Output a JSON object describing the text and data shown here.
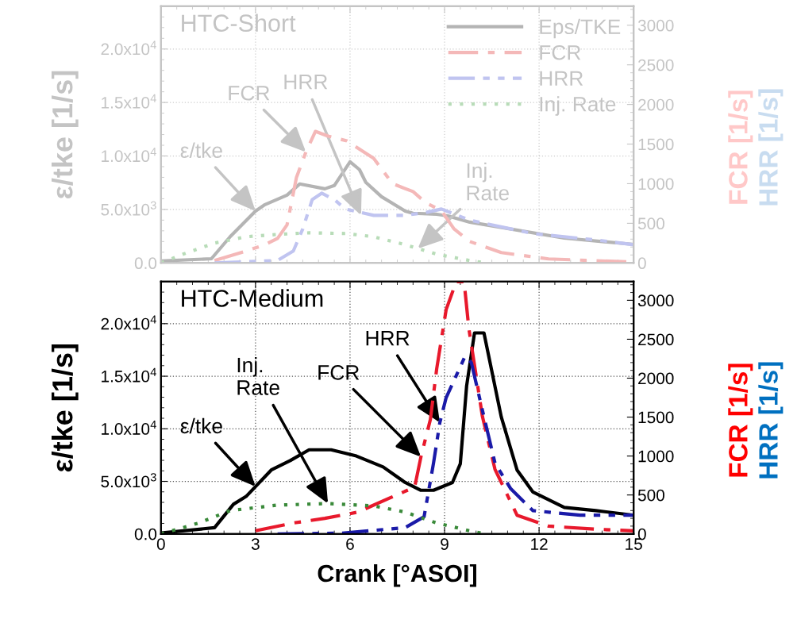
{
  "chart_data": [
    {
      "type": "line",
      "title": "HTC-Short",
      "ylabel": "ε/tke [1/s]",
      "y2label": "FCR [1/s]",
      "y3label": "HRR [1/s]",
      "xlim": [
        0,
        15
      ],
      "xticks": [
        0,
        3,
        6,
        9,
        12,
        15
      ],
      "ylim": [
        0,
        24000
      ],
      "yticks": [
        {
          "value": 0,
          "label": "0.0"
        },
        {
          "value": 5000,
          "label": "5.0x10$^{3}$"
        },
        {
          "value": 10000,
          "label": "1.0x10$^{4}$"
        },
        {
          "value": 15000,
          "label": "1.5x10$^{4}$"
        },
        {
          "value": 20000,
          "label": "2.0x10$^{4}$"
        }
      ],
      "y2lim": [
        0,
        3240
      ],
      "y2ticks": [
        0,
        500,
        1000,
        1500,
        2000,
        2500,
        3000
      ],
      "grid": true,
      "legend": "top right",
      "tick_labels": "y",
      "series": [
        {
          "name": "Eps/TKE",
          "color": "#b4b4b4",
          "line_style": "solid",
          "x": [
            0,
            1.6,
            2.2,
            3.0,
            3.3,
            4.0,
            4.4,
            5.2,
            5.5,
            6.0,
            6.3,
            6.5,
            7.0,
            7.75,
            8.0,
            8.75,
            9.1,
            9.8,
            12.8,
            15
          ],
          "values": [
            180,
            390,
            2470,
            4850,
            5450,
            6340,
            7380,
            6930,
            7230,
            9460,
            8720,
            7530,
            6190,
            4850,
            4640,
            4550,
            4400,
            3810,
            2320,
            1730
          ]
        },
        {
          "name": "FCR",
          "color": "#f4b8b8",
          "line_style": "dashdot",
          "axis": "y2",
          "x": [
            1.7,
            2.7,
            3.3,
            3.7,
            4.0,
            4.3,
            4.6,
            4.9,
            5.3,
            5.9,
            6.75,
            7.35,
            8.0,
            8.4,
            8.9,
            9.3,
            9.8,
            10.8,
            12.3,
            15
          ],
          "values": [
            30,
            150,
            230,
            310,
            480,
            1080,
            1400,
            1660,
            1600,
            1540,
            1320,
            1000,
            900,
            760,
            660,
            430,
            270,
            130,
            50,
            10
          ]
        },
        {
          "name": "HRR",
          "color": "#c0c4f0",
          "line_style": "dashdotdot",
          "axis": "y2",
          "x": [
            1.7,
            3.7,
            4.2,
            4.5,
            4.8,
            5.1,
            5.5,
            5.85,
            6.75,
            7.75,
            8.45,
            8.9,
            9.8,
            11.8,
            13.8,
            15
          ],
          "values": [
            0,
            30,
            150,
            430,
            800,
            880,
            800,
            680,
            600,
            600,
            640,
            680,
            540,
            370,
            290,
            230
          ]
        },
        {
          "name": "Inj. Rate",
          "color": "#b8dcb8",
          "line_style": "dotted",
          "axis": "y2",
          "x": [
            0,
            0.7,
            1.7,
            2.7,
            3.7,
            4.7,
            5.9,
            6.75,
            7.75,
            8.75,
            9.8,
            10.3
          ],
          "values": [
            0,
            110,
            250,
            330,
            360,
            380,
            370,
            330,
            230,
            110,
            30,
            0
          ]
        }
      ],
      "annotations": [
        {
          "text": "ε/tke",
          "x": 3.0,
          "y": 4850
        },
        {
          "text": "FCR",
          "x": 4.6,
          "y": 10370
        },
        {
          "text": "HRR",
          "x": 6.35,
          "y": 4444
        },
        {
          "text": "Inj.\nRate",
          "x": 8.15,
          "y": 1333
        }
      ]
    },
    {
      "type": "line",
      "title": "HTC-Medium",
      "xlabel": "Crank [°ASOI]",
      "ylabel": "ε/tke [1/s]",
      "y2label": "FCR [1/s]",
      "y3label": "HRR [1/s]",
      "xlim": [
        0,
        15
      ],
      "xticks": [
        0,
        3,
        6,
        9,
        12,
        15
      ],
      "ylim": [
        0,
        24000
      ],
      "yticks": [
        {
          "value": 0,
          "label": "0.0"
        },
        {
          "value": 5000,
          "label": "5.0x10$^{3}$"
        },
        {
          "value": 10000,
          "label": "1.0x10$^{4}$"
        },
        {
          "value": 15000,
          "label": "1.5x10$^{4}$"
        },
        {
          "value": 20000,
          "label": "2.0x10$^{4}$"
        }
      ],
      "y2lim": [
        0,
        3240
      ],
      "y2ticks": [
        0,
        500,
        1000,
        1500,
        2000,
        2500,
        3000
      ],
      "grid": true,
      "series": [
        {
          "color": "#000000",
          "line_style": "solid",
          "x": [
            0,
            1.7,
            2.3,
            2.7,
            3.5,
            4.1,
            4.7,
            5.4,
            6.2,
            7.05,
            7.75,
            8.25,
            8.65,
            9.25,
            9.5,
            9.7,
            9.95,
            10.25,
            10.8,
            11.3,
            11.8,
            12.8,
            13.8,
            15
          ],
          "values": [
            90,
            590,
            2820,
            3560,
            6080,
            6970,
            8000,
            8000,
            7410,
            6370,
            4890,
            4150,
            4150,
            4890,
            6670,
            14080,
            19120,
            19120,
            11120,
            6080,
            4000,
            2520,
            2220,
            1780
          ]
        },
        {
          "color": "#e8192c",
          "line_style": "dashdot",
          "axis": "y2",
          "x": [
            3.0,
            4.2,
            5.2,
            6.25,
            7.25,
            8.05,
            8.25,
            8.55,
            8.75,
            9.05,
            9.37,
            9.62,
            9.77,
            10.2,
            10.6,
            11.3,
            12.3,
            13.8,
            15
          ],
          "values": [
            40,
            140,
            200,
            280,
            460,
            600,
            990,
            1470,
            2120,
            2880,
            3240,
            3240,
            2640,
            1510,
            830,
            240,
            100,
            60,
            40
          ]
        },
        {
          "color": "#1a1aa8",
          "line_style": "dashdotdot",
          "axis": "y2",
          "x": [
            3.7,
            5.75,
            7.75,
            8.35,
            8.65,
            8.85,
            9.05,
            9.65,
            9.85,
            10.2,
            10.6,
            11.1,
            11.8,
            13.3,
            15
          ],
          "values": [
            0,
            10,
            80,
            220,
            910,
            1430,
            1750,
            2280,
            2200,
            1590,
            910,
            580,
            300,
            240,
            240
          ]
        },
        {
          "color": "#3a8a3a",
          "line_style": "dotted",
          "axis": "y2",
          "x": [
            0,
            1.2,
            2.2,
            3.7,
            5.3,
            6.75,
            7.75,
            8.75,
            9.8,
            10.3
          ],
          "values": [
            0,
            140,
            300,
            370,
            390,
            360,
            280,
            140,
            40,
            0
          ]
        }
      ],
      "annotations": [
        {
          "text": "ε/tke",
          "x": 3.0,
          "y": 4505
        },
        {
          "text": "Inj.\nRate",
          "x": 5.3,
          "y": 2889
        },
        {
          "text": "FCR",
          "x": 8.25,
          "y": 7333
        },
        {
          "text": "HRR",
          "x": 8.85,
          "y": 10593
        }
      ]
    }
  ]
}
